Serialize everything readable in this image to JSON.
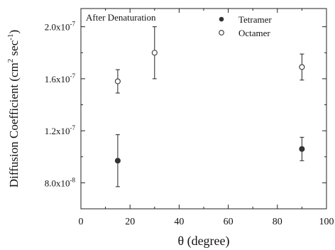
{
  "chart_data": {
    "type": "scatter",
    "annotation": "After Denaturation",
    "xlabel": "θ (degree)",
    "ylabel": "Diffusion Coefficient (cm² sec⁻¹)",
    "ylabel_parts": {
      "base": "Diffusion Coefficient (cm",
      "exp1": "2",
      "mid": " sec",
      "exp2": "-1",
      "end": ")"
    },
    "xlim": [
      0,
      100
    ],
    "ylim": [
      6e-08,
      2.14e-07
    ],
    "x_ticks": [
      0,
      20,
      40,
      60,
      80,
      100
    ],
    "x_tick_labels": [
      "0",
      "20",
      "40",
      "60",
      "80",
      "100"
    ],
    "y_ticks": [
      8e-08,
      1.2e-07,
      1.6e-07,
      2e-07
    ],
    "y_tick_labels": [
      {
        "mant": "8.0x10",
        "exp": "-8"
      },
      {
        "mant": "1.2x10",
        "exp": "-7"
      },
      {
        "mant": "1.6x10",
        "exp": "-7"
      },
      {
        "mant": "2.0x10",
        "exp": "-7"
      }
    ],
    "legend_position": "top-right",
    "series": [
      {
        "name": "Tetramer",
        "marker": "filled-circle",
        "color": "#333333",
        "points": [
          {
            "x": 15,
            "y": 9.7e-08,
            "err_low": 7.7e-08,
            "err_high": 1.17e-07
          },
          {
            "x": 90,
            "y": 1.06e-07,
            "err_low": 9.7e-08,
            "err_high": 1.15e-07
          }
        ]
      },
      {
        "name": "Octamer",
        "marker": "open-circle",
        "color": "#333333",
        "points": [
          {
            "x": 15,
            "y": 1.58e-07,
            "err_low": 1.49e-07,
            "err_high": 1.67e-07
          },
          {
            "x": 30,
            "y": 1.8e-07,
            "err_low": 1.6e-07,
            "err_high": 2e-07
          },
          {
            "x": 90,
            "y": 1.69e-07,
            "err_low": 1.59e-07,
            "err_high": 1.79e-07
          }
        ]
      }
    ]
  }
}
